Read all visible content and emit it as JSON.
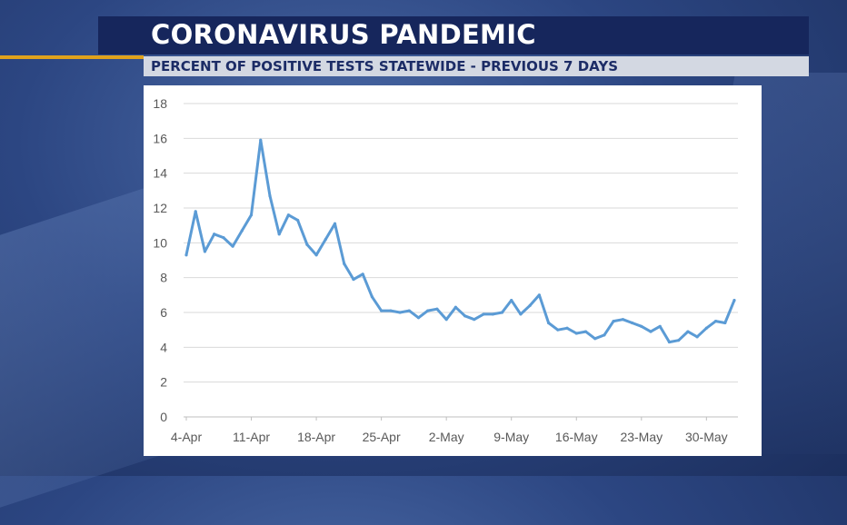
{
  "header": {
    "title": "CORONAVIRUS PANDEMIC",
    "subtitle": "PERCENT OF POSITIVE TESTS STATEWIDE - PREVIOUS 7 DAYS"
  },
  "colors": {
    "title_bar": "#16265c",
    "accent": "#e0a21c",
    "series_line": "#5b9bd5",
    "gridline": "#d9d9d9"
  },
  "chart_data": {
    "type": "line",
    "title": "",
    "xlabel": "",
    "ylabel": "",
    "ylim": [
      0,
      18
    ],
    "yticks": [
      0,
      2,
      4,
      6,
      8,
      10,
      12,
      14,
      16,
      18
    ],
    "grid": true,
    "x_tick_labels": [
      "4-Apr",
      "11-Apr",
      "18-Apr",
      "25-Apr",
      "2-May",
      "9-May",
      "16-May",
      "23-May",
      "30-May"
    ],
    "x": [
      "4-Apr",
      "5-Apr",
      "6-Apr",
      "7-Apr",
      "8-Apr",
      "9-Apr",
      "10-Apr",
      "11-Apr",
      "12-Apr",
      "13-Apr",
      "14-Apr",
      "15-Apr",
      "16-Apr",
      "17-Apr",
      "18-Apr",
      "19-Apr",
      "20-Apr",
      "21-Apr",
      "22-Apr",
      "23-Apr",
      "24-Apr",
      "25-Apr",
      "26-Apr",
      "27-Apr",
      "28-Apr",
      "29-Apr",
      "30-Apr",
      "1-May",
      "2-May",
      "3-May",
      "4-May",
      "5-May",
      "6-May",
      "7-May",
      "8-May",
      "9-May",
      "10-May",
      "11-May",
      "12-May",
      "13-May",
      "14-May",
      "15-May",
      "16-May",
      "17-May",
      "18-May",
      "19-May",
      "20-May",
      "21-May",
      "22-May",
      "23-May",
      "24-May",
      "25-May",
      "26-May",
      "27-May",
      "28-May",
      "29-May",
      "30-May",
      "31-May",
      "1-Jun",
      "2-Jun"
    ],
    "series": [
      {
        "values": [
          9.3,
          11.8,
          9.5,
          10.5,
          10.3,
          9.8,
          10.7,
          11.6,
          15.9,
          12.7,
          10.5,
          11.6,
          11.3,
          9.9,
          9.3,
          10.2,
          11.1,
          8.8,
          7.9,
          8.2,
          6.9,
          6.1,
          6.1,
          6.0,
          6.1,
          5.7,
          6.1,
          6.2,
          5.6,
          6.3,
          5.8,
          5.6,
          5.9,
          5.9,
          6.0,
          6.7,
          5.9,
          6.4,
          7.0,
          5.4,
          5.0,
          5.1,
          4.8,
          4.9,
          4.5,
          4.7,
          5.5,
          5.6,
          5.4,
          5.2,
          4.9,
          5.2,
          4.3,
          4.4,
          4.9,
          4.6,
          5.1,
          5.5,
          5.4,
          6.7
        ]
      }
    ]
  }
}
